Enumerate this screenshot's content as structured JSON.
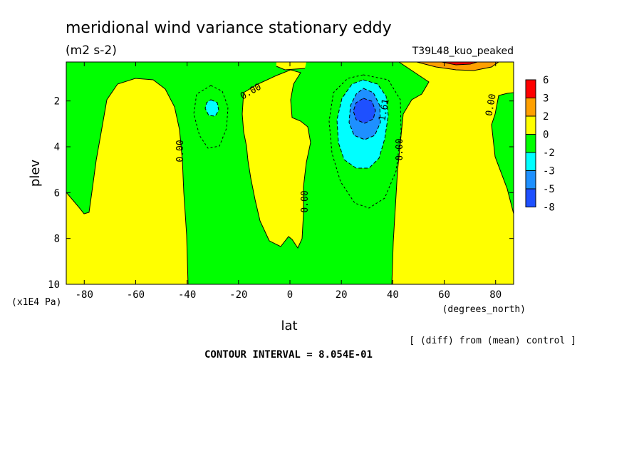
{
  "chart_data": {
    "type": "contour",
    "title": "meridional wind variance  stationary eddy",
    "units": "(m2 s-2)",
    "experiment": "T39L48_kuo_peaked",
    "xlabel": "lat",
    "xunits": "(degrees_north)",
    "ylabel": "plev",
    "yunits": "(x1E4 Pa)",
    "x_ticks": [
      -80,
      -60,
      -40,
      -20,
      0,
      20,
      40,
      60,
      80
    ],
    "y_ticks": [
      2,
      4,
      6,
      8,
      10
    ],
    "xlim": [
      -87,
      87
    ],
    "ylim": [
      10,
      0.3
    ],
    "contour_interval": "CONTOUR INTERVAL = 8.054E-01",
    "note": "[ (diff) from (mean) control ]",
    "contour_labels": [
      "0.00",
      "0.00",
      "0.00",
      "0.00",
      "0.00",
      "1.61"
    ],
    "colorbar": {
      "levels": [
        "6",
        "3",
        "2",
        "0",
        "-2",
        "-3",
        "-5",
        "-8"
      ],
      "colors": [
        "#ff0000",
        "#ffa000",
        "#ffff00",
        "#00ff00",
        "#00ffff",
        "#1e90ff",
        "#1e50ff"
      ]
    },
    "features": [
      {
        "name": "negative minimum",
        "lat": 30,
        "plev": 2.4,
        "approx_value": -5
      },
      {
        "name": "small negative cell",
        "lat": -30,
        "plev": 2.2,
        "approx_value": -2.5
      }
    ]
  }
}
